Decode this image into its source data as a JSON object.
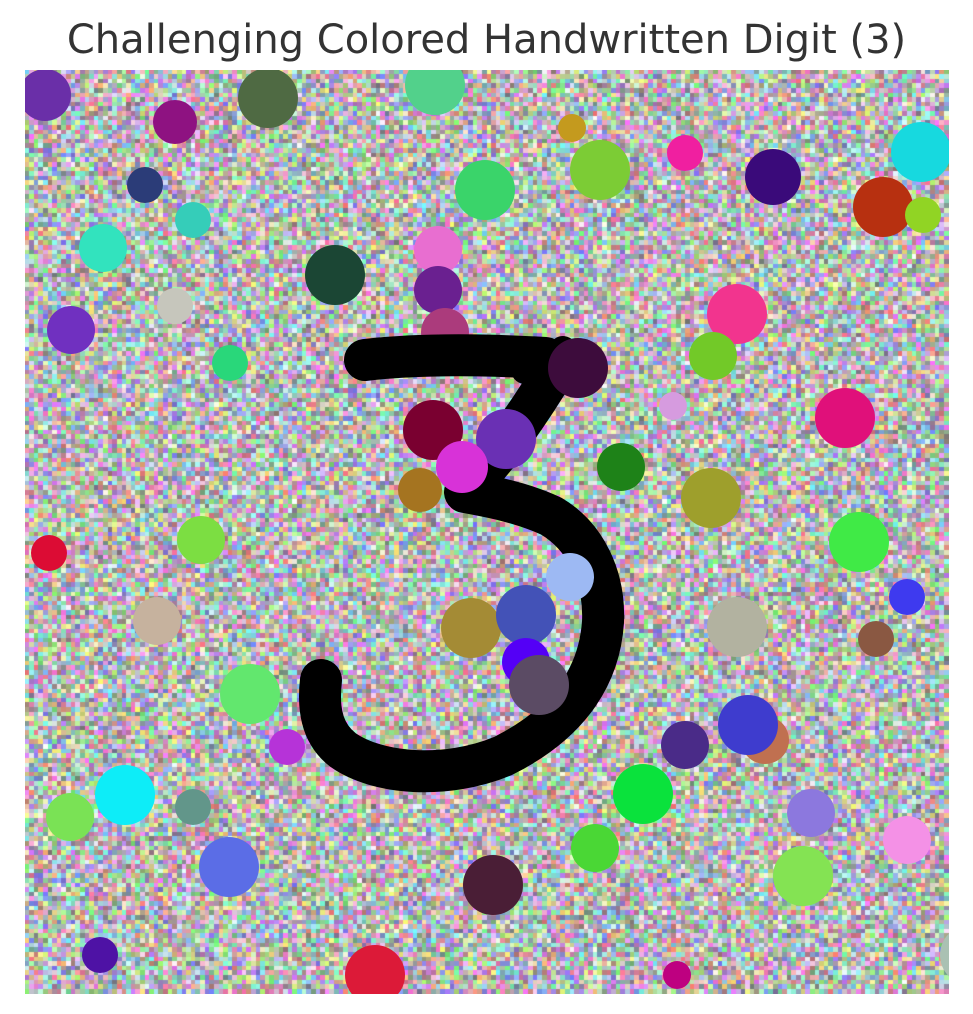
{
  "figure": {
    "title": "Challenging Colored Handwritten Digit (3)"
  },
  "image": {
    "digit": "3",
    "digit_color": "#000000",
    "background": "dense random multicolored pixel noise",
    "blob_colors": [
      "#6a2fa8",
      "#8e1281",
      "#4f6a43",
      "#52d18b",
      "#c49a1e",
      "#17d9df",
      "#3a0a7a",
      "#2b3c78",
      "#3ad46a",
      "#7ccc35",
      "#f01fa0",
      "#b73010",
      "#91d424",
      "#35cdb9",
      "#32e3be",
      "#1b4634",
      "#e86ed0",
      "#6a2090",
      "#c6c6bc",
      "#7030c0",
      "#ab3b7c",
      "#f2348e",
      "#29d77a",
      "#3d0c3c",
      "#72c928",
      "#d69bdf",
      "#e0107a",
      "#7a0030",
      "#6a30b4",
      "#d832d8",
      "#1e8218",
      "#9e9f2c",
      "#40ea46",
      "#7cde42",
      "#dc0c34",
      "#9db9f3",
      "#c6b29e",
      "#a48b35",
      "#4352b7",
      "#5400f6",
      "#a6826c",
      "#b2b2a0",
      "#8a5842",
      "#3e3aef",
      "#62e76e",
      "#5b4b64",
      "#b633d8",
      "#4a2b88",
      "#c07050",
      "#3e3cce",
      "#0dedf8",
      "#7ae255",
      "#62968a",
      "#0ae23c",
      "#8c78de",
      "#4ad735",
      "#f491e6",
      "#84e353",
      "#4a1e36",
      "#5b6de6",
      "#4e12a5",
      "#dc1a38",
      "#aac1b3",
      "#be0080",
      "#a57420"
    ]
  }
}
